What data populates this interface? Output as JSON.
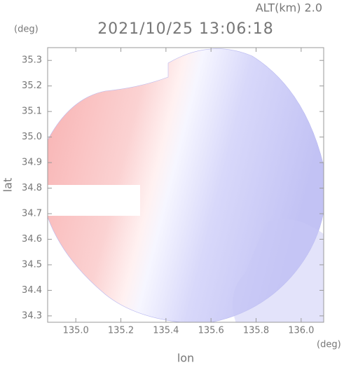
{
  "chart_data": {
    "type": "radar-field",
    "title": "2021/10/25 13:06:18",
    "annotation": "ALT(km) 2.0",
    "x_unit": "(deg)",
    "y_unit": "(deg)",
    "xlabel": "lon",
    "ylabel": "lat",
    "xlim": [
      134.875,
      136.1
    ],
    "ylim": [
      34.275,
      35.35
    ],
    "xticks": [
      {
        "value": 135,
        "label": "135.0"
      },
      135.2,
      135.4,
      135.6,
      135.8,
      {
        "value": 136,
        "label": "136.0"
      }
    ],
    "yticks": [
      34.3,
      34.4,
      34.5,
      34.6,
      34.7,
      34.8,
      34.9,
      {
        "value": 35,
        "label": "35.0"
      },
      35.1,
      35.2,
      35.3
    ]
  }
}
